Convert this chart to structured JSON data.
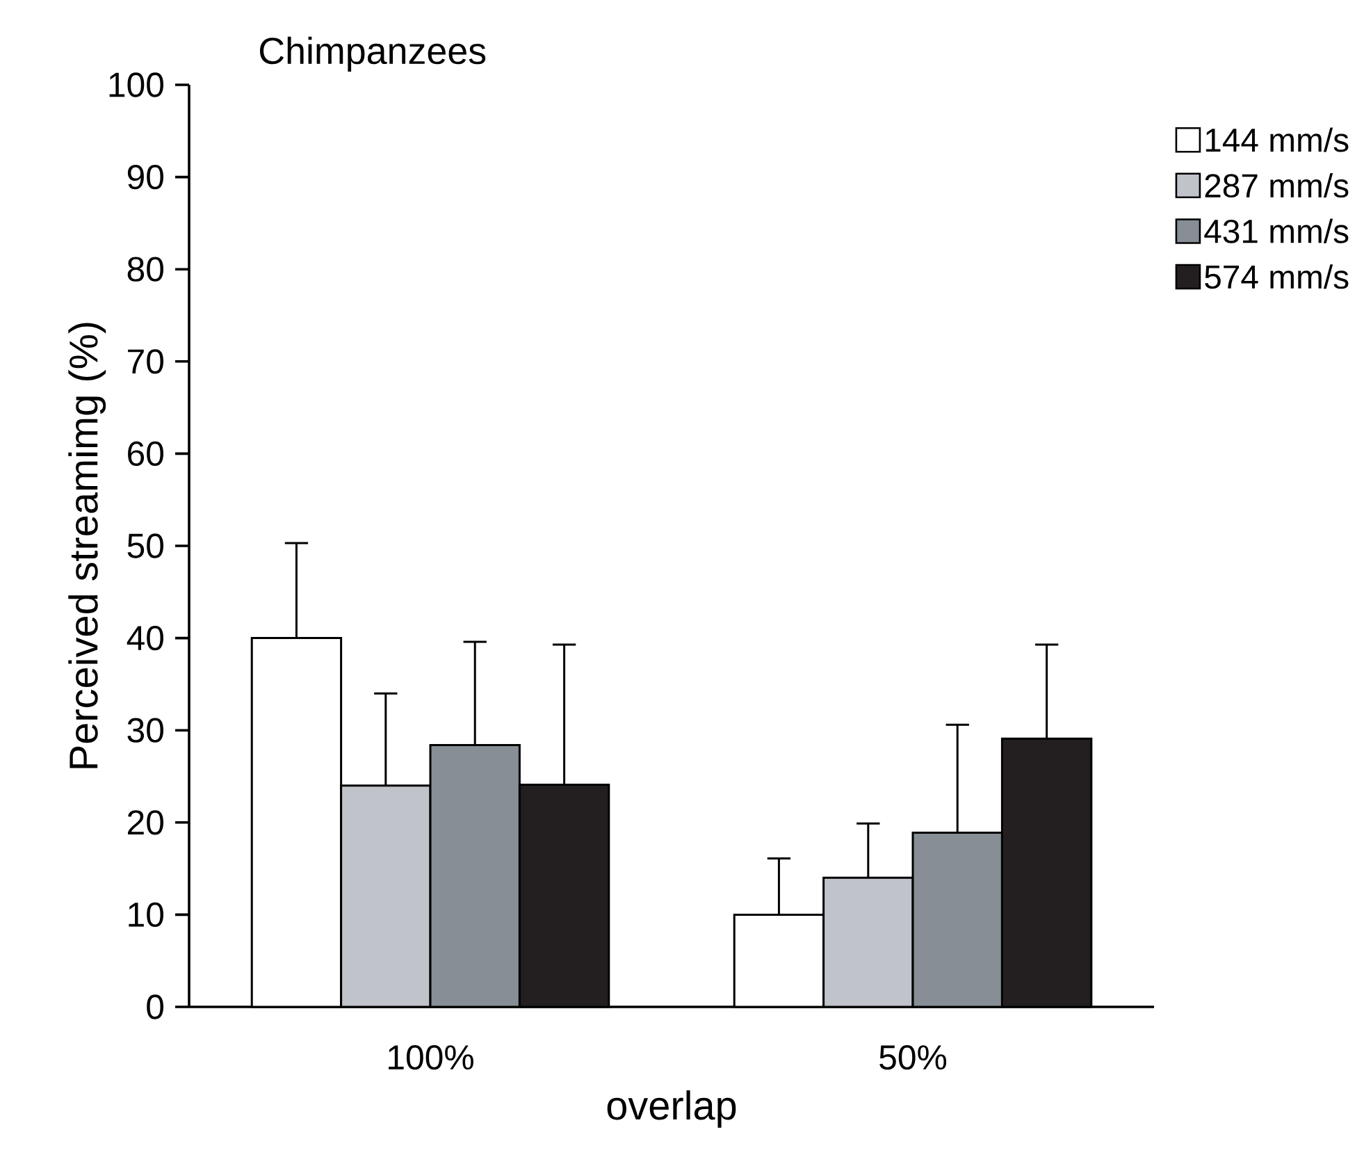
{
  "chart_data": {
    "type": "bar",
    "title": "Chimpanzees",
    "xlabel": "overlap",
    "ylabel": "Perceived streamimg (%)",
    "categories": [
      "100%",
      "50%"
    ],
    "series": [
      {
        "name": "144 mm/s",
        "color": "#ffffff",
        "values": [
          40,
          10
        ],
        "errors": [
          [
            40,
            50.3
          ],
          [
            10,
            16.1
          ]
        ]
      },
      {
        "name": "287 mm/s",
        "color": "#c0c3ca",
        "values": [
          24,
          14
        ],
        "errors": [
          [
            24,
            34
          ],
          [
            14,
            19.9
          ]
        ]
      },
      {
        "name": "431 mm/s",
        "color": "#878e96",
        "values": [
          28.4,
          18.9
        ],
        "errors": [
          [
            28.4,
            39.6
          ],
          [
            18.9,
            30.6
          ]
        ]
      },
      {
        "name": "574 mm/s",
        "color": "#231f20",
        "values": [
          24.1,
          29.1
        ],
        "errors": [
          [
            24.1,
            39.3
          ],
          [
            29.1,
            39.3
          ]
        ]
      }
    ],
    "ylim": [
      0,
      100
    ],
    "yticks": [
      0,
      10,
      20,
      30,
      40,
      50,
      60,
      70,
      80,
      90,
      100
    ],
    "legend": "top right"
  }
}
